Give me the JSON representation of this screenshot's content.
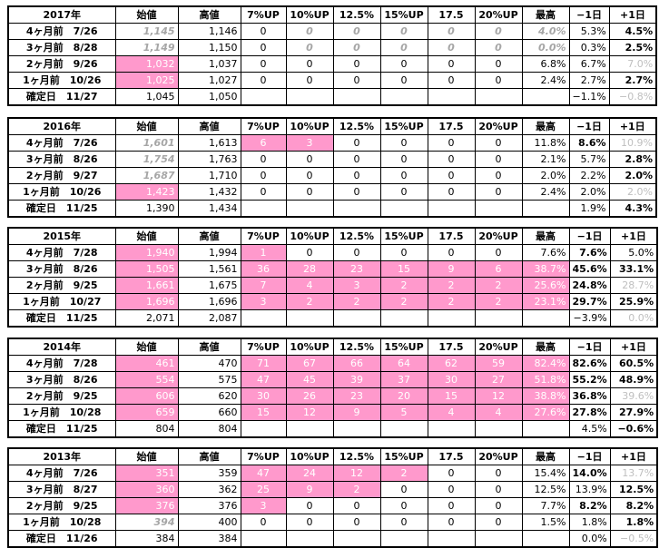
{
  "headers": [
    "始値",
    "高値",
    "7%UP",
    "10%UP",
    "12.5%",
    "15%UP",
    "17.5",
    "20%UP",
    "最高",
    "−1日",
    "+1日"
  ],
  "blocks": [
    {
      "year": "2017年",
      "rows": [
        [
          "4ヶ月前　7/26",
          "1,145",
          "1,146",
          "0",
          "0",
          "0",
          "0",
          "0",
          "0",
          "4.0%",
          "5.3%",
          "4.5%"
        ],
        [
          "3ヶ月前　8/28",
          "1,149",
          "1,150",
          "0",
          "0",
          "0",
          "0",
          "0",
          "0",
          "0.0%",
          "0.3%",
          "2.5%"
        ],
        [
          "2ヶ月前　9/26",
          "1,032",
          "1,037",
          "0",
          "0",
          "0",
          "0",
          "0",
          "0",
          "6.8%",
          "6.7%",
          "7.0%"
        ],
        [
          "1ヶ月前　10/26",
          "1,025",
          "1,027",
          "0",
          "0",
          "0",
          "0",
          "0",
          "0",
          "2.4%",
          "2.7%",
          "2.7%"
        ],
        [
          "確定日　11/27",
          "1,045",
          "1,050",
          "",
          "",
          "",
          "",
          "",
          "",
          "",
          "−1.1%",
          "−0.8%"
        ]
      ]
    },
    {
      "year": "2016年",
      "rows": [
        [
          "4ヶ月前　7/26",
          "1,601",
          "1,613",
          "6",
          "3",
          "0",
          "0",
          "0",
          "0",
          "11.8%",
          "8.6%",
          "10.9%"
        ],
        [
          "3ヶ月前　8/26",
          "1,754",
          "1,763",
          "0",
          "0",
          "0",
          "0",
          "0",
          "0",
          "2.1%",
          "5.7%",
          "2.8%"
        ],
        [
          "2ヶ月前　9/27",
          "1,687",
          "1,710",
          "0",
          "0",
          "0",
          "0",
          "0",
          "0",
          "2.0%",
          "2.2%",
          "2.0%"
        ],
        [
          "1ヶ月前　10/26",
          "1,423",
          "1,432",
          "0",
          "0",
          "0",
          "0",
          "0",
          "0",
          "2.4%",
          "2.0%",
          "2.0%"
        ],
        [
          "確定日　11/25",
          "1,390",
          "1,434",
          "",
          "",
          "",
          "",
          "",
          "",
          "",
          "1.9%",
          "4.3%"
        ]
      ]
    },
    {
      "year": "2015年",
      "rows": [
        [
          "4ヶ月前　7/28",
          "1,940",
          "1,994",
          "1",
          "0",
          "0",
          "0",
          "0",
          "0",
          "7.6%",
          "7.6%",
          "5.0%"
        ],
        [
          "3ヶ月前　8/26",
          "1,505",
          "1,561",
          "36",
          "28",
          "23",
          "15",
          "9",
          "6",
          "38.7%",
          "45.6%",
          "33.1%"
        ],
        [
          "2ヶ月前　9/25",
          "1,661",
          "1,675",
          "7",
          "4",
          "3",
          "2",
          "2",
          "2",
          "25.6%",
          "24.8%",
          "28.7%"
        ],
        [
          "1ヶ月前　10/27",
          "1,696",
          "1,696",
          "3",
          "2",
          "2",
          "2",
          "2",
          "2",
          "23.1%",
          "29.7%",
          "25.9%"
        ],
        [
          "確定日　11/25",
          "2,071",
          "2,087",
          "",
          "",
          "",
          "",
          "",
          "",
          "",
          "−3.9%",
          "0.0%"
        ]
      ]
    },
    {
      "year": "2014年",
      "rows": [
        [
          "4ヶ月前　7/28",
          "461",
          "470",
          "71",
          "67",
          "66",
          "64",
          "62",
          "59",
          "82.4%",
          "82.6%",
          "60.5%"
        ],
        [
          "3ヶ月前　8/26",
          "554",
          "575",
          "47",
          "45",
          "39",
          "37",
          "30",
          "27",
          "51.8%",
          "55.2%",
          "48.9%"
        ],
        [
          "2ヶ月前　9/25",
          "606",
          "620",
          "30",
          "26",
          "23",
          "20",
          "15",
          "12",
          "38.8%",
          "36.8%",
          "39.6%"
        ],
        [
          "1ヶ月前　10/28",
          "659",
          "660",
          "15",
          "12",
          "9",
          "5",
          "4",
          "4",
          "27.6%",
          "27.8%",
          "27.9%"
        ],
        [
          "確定日　11/25",
          "804",
          "804",
          "",
          "",
          "",
          "",
          "",
          "",
          "",
          "4.5%",
          "−0.6%"
        ]
      ]
    },
    {
      "year": "2013年",
      "rows": [
        [
          "4ヶ月前　7/26",
          "351",
          "359",
          "47",
          "24",
          "12",
          "2",
          "0",
          "0",
          "15.4%",
          "14.0%",
          "13.7%"
        ],
        [
          "3ヶ月前　8/27",
          "360",
          "362",
          "25",
          "9",
          "2",
          "0",
          "0",
          "0",
          "12.5%",
          "13.9%",
          "12.5%"
        ],
        [
          "2ヶ月前　9/25",
          "376",
          "376",
          "3",
          "0",
          "0",
          "0",
          "0",
          "0",
          "7.7%",
          "8.2%",
          "8.2%"
        ],
        [
          "1ヶ月前　10/28",
          "394",
          "400",
          "0",
          "0",
          "0",
          "0",
          "0",
          "0",
          "1.5%",
          "1.8%",
          "1.8%"
        ],
        [
          "確定日　11/26",
          "384",
          "384",
          "",
          "",
          "",
          "",
          "",
          "",
          "",
          "0.0%",
          "−0.5%"
        ]
      ]
    }
  ]
}
